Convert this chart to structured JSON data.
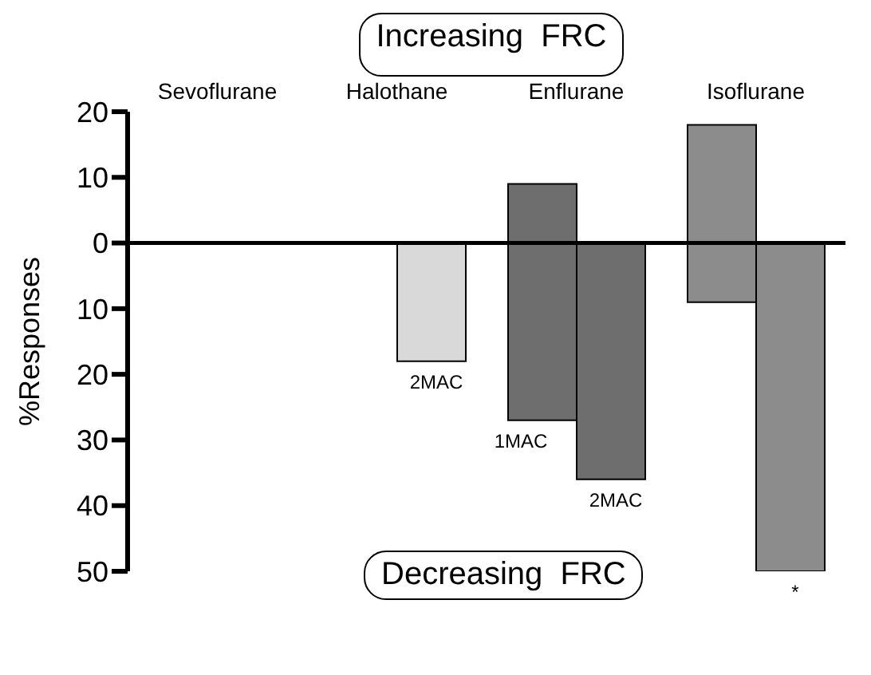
{
  "chart_data": {
    "type": "bar",
    "title": "Increasing  FRC",
    "ylabel": "%Responses",
    "categories": [
      "Sevoflurane",
      "Halothane",
      "Enflurane",
      "Isoflurane"
    ],
    "series": [
      {
        "colors": [
          null,
          null,
          "#6e6e6e",
          "#8c8c8c"
        ],
        "base": [
          null,
          null,
          -27,
          -9
        ],
        "values": [
          null,
          null,
          36,
          27
        ]
      },
      {
        "colors": [
          null,
          "#d9d9d9",
          "#6e6e6e",
          "#8c8c8c"
        ],
        "values": [
          null,
          -18,
          -36,
          -50
        ]
      }
    ],
    "ylim": [
      -50,
      20
    ],
    "yticks": [
      {
        "value": -50,
        "label": "50"
      },
      {
        "value": -40,
        "label": "40"
      },
      {
        "value": -30,
        "label": "30"
      },
      {
        "value": -20,
        "label": "20"
      },
      {
        "value": -10,
        "label": "10"
      },
      0,
      10,
      20
    ],
    "ref_lines": [
      {
        "axis": "y",
        "value": 0,
        "color": "#000000"
      }
    ],
    "annotations": [
      {
        "text": "2MAC",
        "x": "Halothane",
        "y": -18
      },
      {
        "text": "1MAC",
        "x": "Enflurane",
        "y": -27
      },
      {
        "text": "2MAC",
        "x": "Enflurane",
        "y": -36
      },
      {
        "text": "*",
        "x": "Isoflurane",
        "y": -50
      },
      "Decreasing  FRC"
    ]
  }
}
